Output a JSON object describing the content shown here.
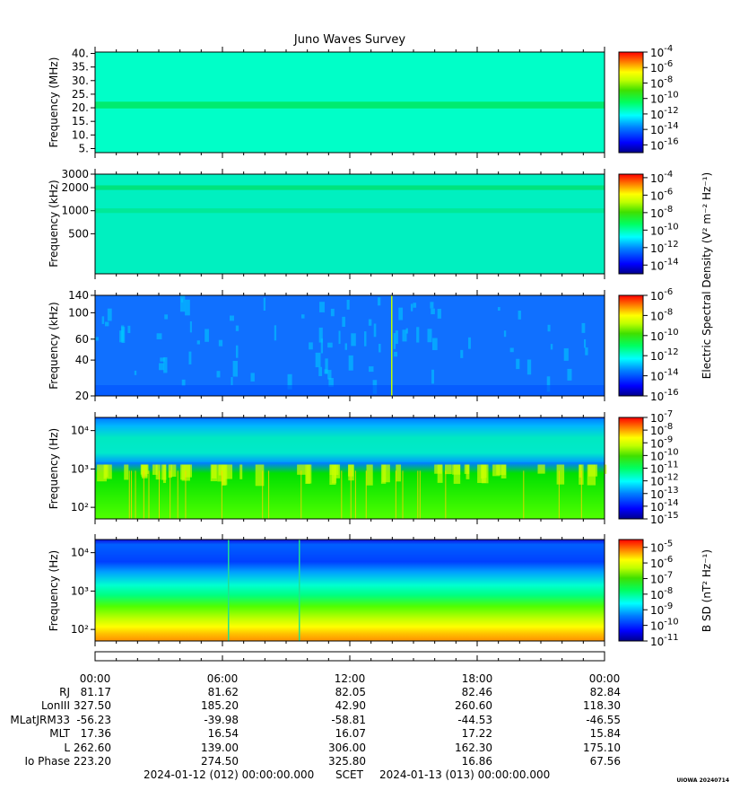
{
  "title": "Juno Waves Survey",
  "colorbar_group_label_e": "Electric Spectral Density (V² m⁻² Hz⁻¹)",
  "colorbar_label_b": "B SD (nT² Hz⁻¹)",
  "palette": [
    "#00008b",
    "#0000ff",
    "#0060ff",
    "#00c0ff",
    "#00ffff",
    "#00ff80",
    "#00e000",
    "#80ff00",
    "#ffff00",
    "#ffb000",
    "#ff5000",
    "#ff0000"
  ],
  "time_ticks": [
    "00:00",
    "06:00",
    "12:00",
    "18:00",
    "00:00"
  ],
  "ephemeris": {
    "labels": [
      "RJ",
      "LonIII",
      "MLatJRM33",
      "MLT",
      "L",
      "Io Phase"
    ],
    "rows": [
      [
        "81.17",
        "81.62",
        "82.05",
        "82.46",
        "82.84"
      ],
      [
        "327.50",
        "185.20",
        "42.90",
        "260.60",
        "118.30"
      ],
      [
        "-56.23",
        "-39.98",
        "-58.81",
        "-44.53",
        "-46.55"
      ],
      [
        "17.36",
        "16.54",
        "16.07",
        "17.22",
        "15.84"
      ],
      [
        "262.60",
        "139.00",
        "306.00",
        "162.30",
        "175.10"
      ],
      [
        "223.20",
        "274.50",
        "325.80",
        "16.86",
        "67.56"
      ]
    ]
  },
  "footer": {
    "start": "2024-01-12 (012) 00:00:00.000",
    "scet": "SCET",
    "end": "2024-01-13 (013) 00:00:00.000"
  },
  "version": "UIOWA 20240714",
  "chart_data": [
    {
      "type": "heatmap",
      "ylabel": "Frequency (MHz)",
      "yscale": "linear",
      "ylim": [
        3.5,
        40.5
      ],
      "yticks": [
        "5.",
        "10.",
        "15.",
        "20.",
        "25.",
        "30.",
        "35.",
        "40."
      ],
      "yticks_values": [
        5,
        10,
        15,
        20,
        25,
        30,
        35,
        40
      ],
      "colorbar": {
        "exp_min": -17,
        "exp_max": -4,
        "labels": [
          "-4",
          "-6",
          "-8",
          "-10",
          "-12",
          "-14",
          "-16"
        ]
      },
      "base_color": "#00ffc8",
      "bands": [
        {
          "y": 21,
          "width": 2.5,
          "color": "#00e860"
        }
      ]
    },
    {
      "type": "heatmap",
      "ylabel": "Frequency (kHz)",
      "yscale": "log",
      "ylim": [
        150,
        3000
      ],
      "yticks": [
        "3000",
        "2000",
        "1000",
        "500"
      ],
      "yticks_values": [
        3000,
        2000,
        1000,
        500
      ],
      "colorbar": {
        "exp_min": -15,
        "exp_max": -3.6,
        "labels": [
          "-4",
          "-6",
          "-8",
          "-10",
          "-12",
          "-14"
        ]
      },
      "base_color": "#00f0c0",
      "bands": [
        {
          "y": 2000,
          "width": 0.03,
          "color": "#00e070"
        },
        {
          "y": 1000,
          "width": 0.03,
          "color": "#00e890"
        }
      ]
    },
    {
      "type": "heatmap",
      "ylabel": "Frequency (kHz)",
      "yscale": "log",
      "ylim": [
        20,
        140
      ],
      "yticks": [
        "140",
        "100",
        "60",
        "40",
        "20"
      ],
      "yticks_values": [
        140,
        100,
        60,
        40,
        20
      ],
      "colorbar": {
        "exp_min": -16,
        "exp_max": -6,
        "labels": [
          "-6",
          "-8",
          "-10",
          "-12",
          "-14",
          "-16"
        ]
      },
      "base_color": "#1070ff",
      "bands": []
    },
    {
      "type": "heatmap",
      "ylabel": "Frequency (Hz)",
      "yscale": "log",
      "ylim": [
        50,
        22000
      ],
      "yticks": [
        "10⁴",
        "10³",
        "10²"
      ],
      "yticks_values": [
        10000,
        1000,
        100
      ],
      "colorbar": {
        "exp_min": -15,
        "exp_max": -7,
        "labels": [
          "-7",
          "-8",
          "-9",
          "-10",
          "-11",
          "-12",
          "-13",
          "-14",
          "-15"
        ]
      },
      "base_color": "#30e000",
      "bands": []
    },
    {
      "type": "heatmap",
      "ylabel": "Frequency (Hz)",
      "yscale": "log",
      "ylim": [
        50,
        22000
      ],
      "yticks": [
        "10⁴",
        "10³",
        "10²"
      ],
      "yticks_values": [
        10000,
        1000,
        100
      ],
      "colorbar": {
        "exp_min": -11,
        "exp_max": -4.5,
        "labels": [
          "-5",
          "-6",
          "-7",
          "-8",
          "-9",
          "-10",
          "-11"
        ]
      },
      "base_color": "#00ff80",
      "bands": []
    }
  ]
}
